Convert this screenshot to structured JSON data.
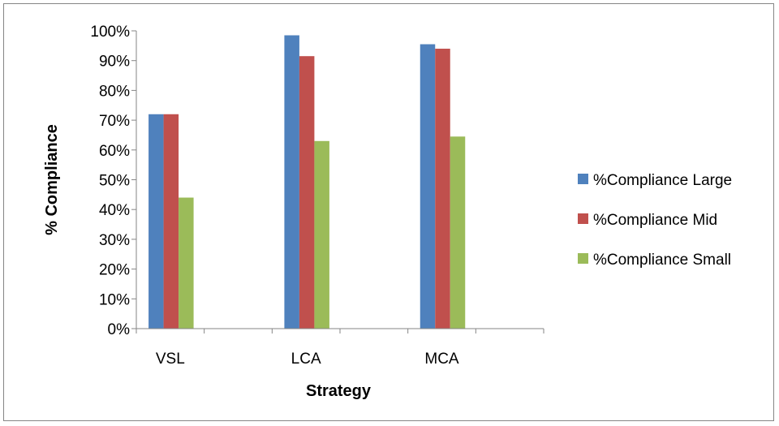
{
  "chart_data": {
    "type": "bar",
    "title": "",
    "xlabel": "Strategy",
    "ylabel": "% Compliance",
    "ylim": [
      0,
      100
    ],
    "y_ticks": [
      "0%",
      "10%",
      "20%",
      "30%",
      "40%",
      "50%",
      "60%",
      "70%",
      "80%",
      "90%",
      "100%"
    ],
    "categories": [
      "VSL",
      "LCA",
      "MCA"
    ],
    "series": [
      {
        "name": "%Compliance Large",
        "color": "#4f81bd",
        "values": [
          72,
          98.5,
          95.5
        ]
      },
      {
        "name": "%Compliance Mid",
        "color": "#c0504d",
        "values": [
          72,
          91.5,
          94
        ]
      },
      {
        "name": "%Compliance Small",
        "color": "#9bbb59",
        "values": [
          44,
          63,
          64.5
        ]
      }
    ],
    "grid": false,
    "legend_position": "right"
  }
}
